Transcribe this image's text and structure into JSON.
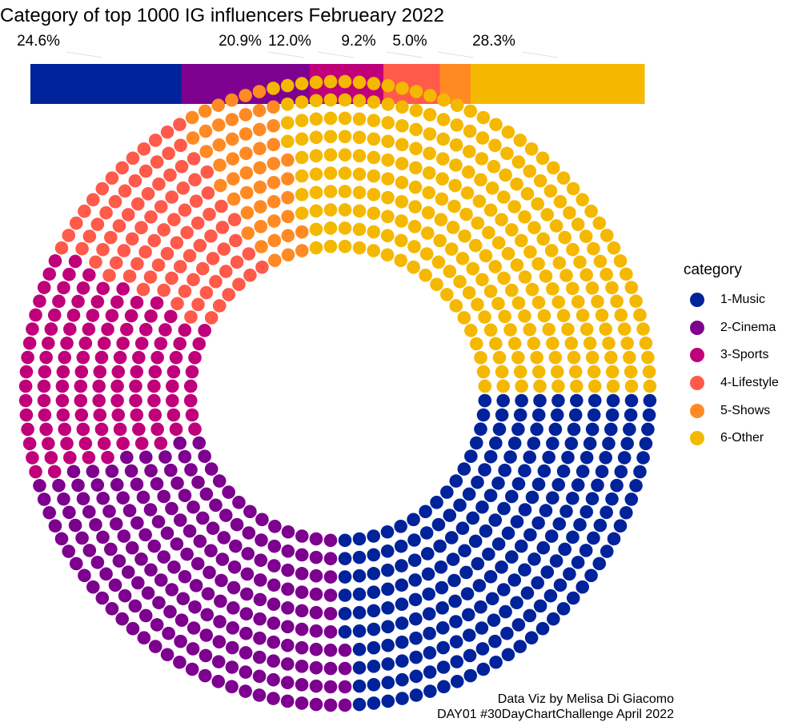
{
  "chart_data": {
    "type": "waffle-donut",
    "title": "Category of top 1000 IG influencers Februeary 2022",
    "total": 1000,
    "categories": [
      "1-Music",
      "2-Cinema",
      "3-Sports",
      "4-Lifestyle",
      "5-Shows",
      "6-Other"
    ],
    "values": [
      246,
      209,
      120,
      92,
      50,
      283
    ],
    "percent_labels": [
      "24.6%",
      "20.9%",
      "12.0%",
      "9.2%",
      "5.0%",
      "28.3%"
    ],
    "colors": [
      "#00239b",
      "#7d008f",
      "#c0007a",
      "#ff5a4a",
      "#ff8a24",
      "#f5b800"
    ],
    "legend": {
      "title": "category",
      "position": "right"
    }
  },
  "caption": {
    "line1": "Data Viz by Melisa Di Giacomo",
    "line2": "DAY01 #30DayChartChallenge April 2022"
  }
}
